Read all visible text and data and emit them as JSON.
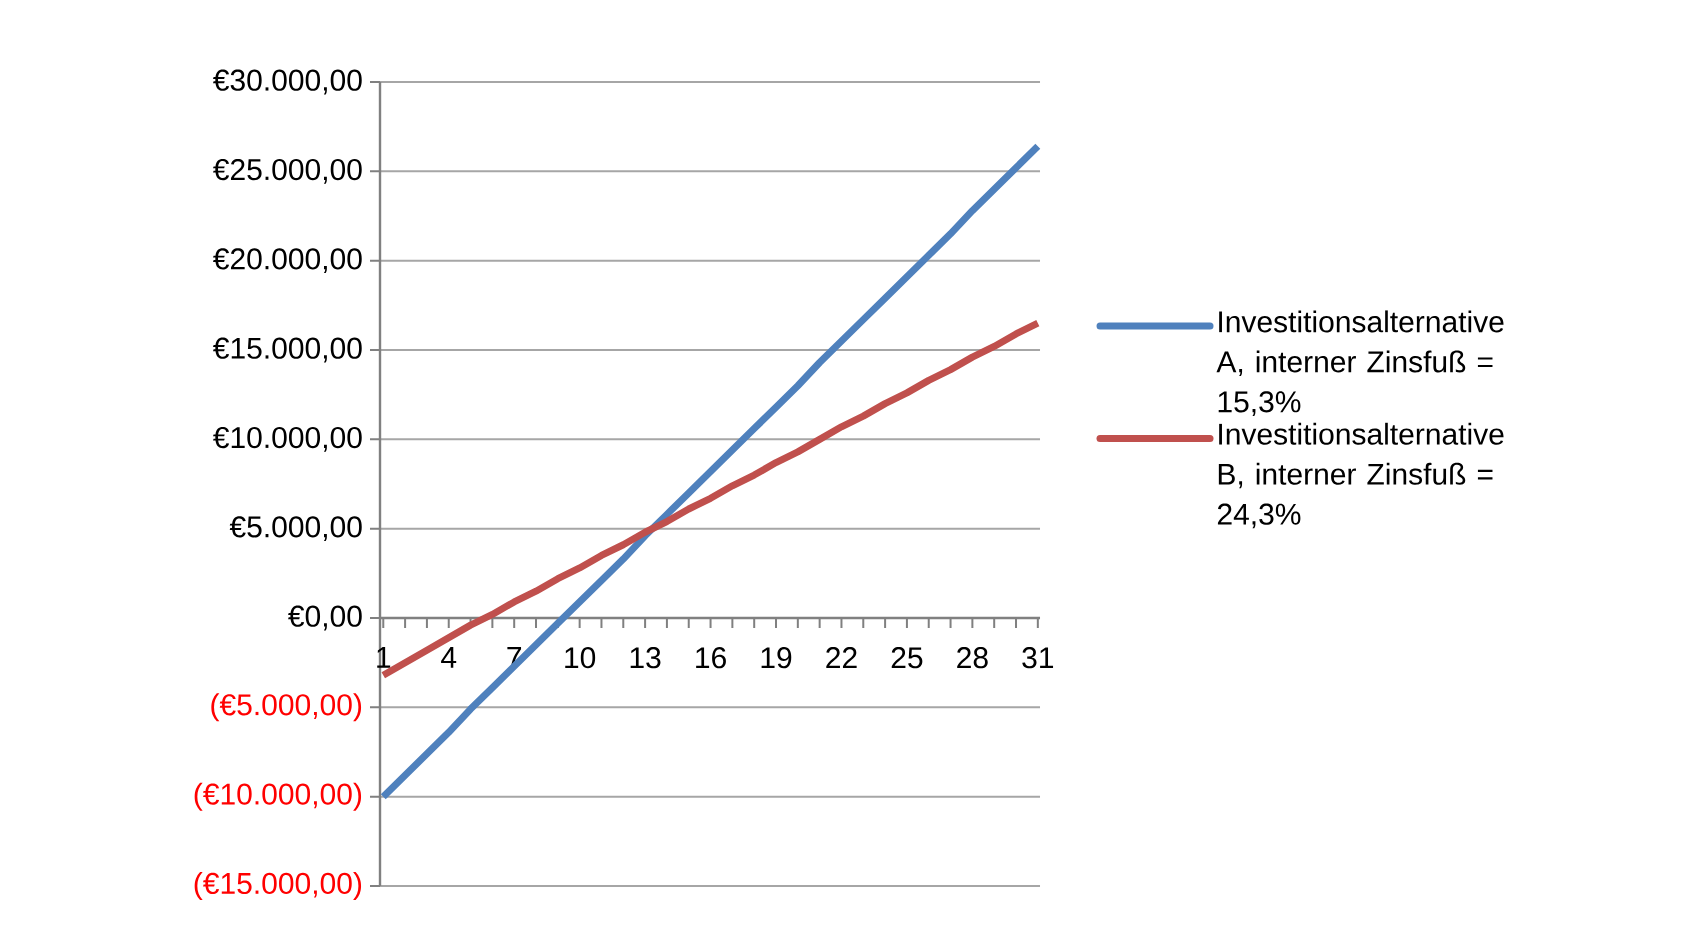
{
  "chart_data": {
    "type": "line",
    "categories": [
      "1",
      null,
      null,
      "4",
      null,
      null,
      "7",
      null,
      null,
      "10",
      null,
      null,
      "13",
      null,
      null,
      "16",
      null,
      null,
      "19",
      null,
      null,
      "22",
      null,
      null,
      "25",
      null,
      null,
      "28",
      null,
      null,
      "31"
    ],
    "series": [
      {
        "name": "Investitionsalternative A, interner Zinsfuß = 15,3%",
        "color": "#4f81bd",
        "values": [
          -10000,
          -8800,
          -7600,
          -6400,
          -5100,
          -3900,
          -2700,
          -1500,
          -300,
          900,
          2100,
          3300,
          4600,
          5800,
          7000,
          8200,
          9400,
          10600,
          11800,
          13000,
          14300,
          15500,
          16700,
          17900,
          19100,
          20300,
          21500,
          22800,
          24000,
          25200,
          26400
        ]
      },
      {
        "name": "Investitionsalternative B, interner Zinsfuß = 24,3%",
        "color": "#c0504d",
        "values": [
          -3200,
          -2500,
          -1800,
          -1100,
          -400,
          200,
          900,
          1500,
          2200,
          2800,
          3500,
          4100,
          4800,
          5400,
          6100,
          6700,
          7400,
          8000,
          8700,
          9300,
          10000,
          10700,
          11300,
          12000,
          12600,
          13300,
          13900,
          14600,
          15200,
          15900,
          16500
        ]
      }
    ],
    "ylim": [
      -15000,
      30000
    ],
    "yticks": [
      {
        "value": -15000,
        "label": "(€15.000,00)"
      },
      {
        "value": -10000,
        "label": "(€10.000,00)"
      },
      {
        "value": -5000,
        "label": "(€5.000,00)"
      },
      {
        "value": 0,
        "label": "€0,00"
      },
      {
        "value": 5000,
        "label": "€5.000,00"
      },
      {
        "value": 10000,
        "label": "€10.000,00"
      },
      {
        "value": 15000,
        "label": "€15.000,00"
      },
      {
        "value": 20000,
        "label": "€20.000,00"
      },
      {
        "value": 25000,
        "label": "€25.000,00"
      },
      {
        "value": 30000,
        "label": "€30.000,00"
      }
    ],
    "grid": "y",
    "legend": "right",
    "marker": "none",
    "line_style": "solid"
  }
}
